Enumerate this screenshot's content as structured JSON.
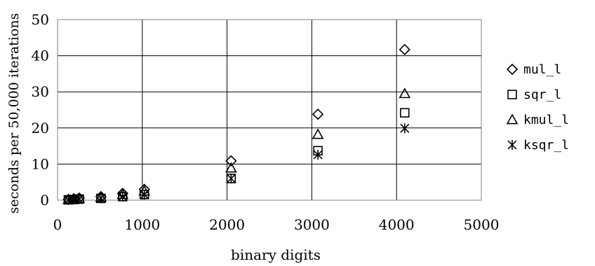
{
  "chart_data": {
    "type": "scatter",
    "title": "",
    "xlabel": "binary digits",
    "ylabel": "seconds per 50,000 iterations",
    "xlim": [
      0,
      5000
    ],
    "ylim": [
      0,
      50
    ],
    "xticks": [
      0,
      1000,
      2000,
      3000,
      4000,
      5000
    ],
    "yticks": [
      0,
      10,
      20,
      30,
      40,
      50
    ],
    "grid": true,
    "legend_position": "right",
    "series": [
      {
        "name": "mul_l",
        "marker": "diamond",
        "x": [
          128,
          192,
          256,
          512,
          768,
          1024,
          2048,
          3072,
          4096
        ],
        "y": [
          0.2,
          0.4,
          0.6,
          1.0,
          1.9,
          3.0,
          10.9,
          23.8,
          41.7
        ]
      },
      {
        "name": "sqr_l",
        "marker": "square",
        "x": [
          128,
          192,
          256,
          512,
          768,
          1024,
          2048,
          3072,
          4096
        ],
        "y": [
          0.1,
          0.2,
          0.3,
          0.5,
          1.0,
          1.6,
          6.0,
          13.7,
          24.2
        ]
      },
      {
        "name": "kmul_l",
        "marker": "triangle",
        "x": [
          128,
          192,
          256,
          512,
          768,
          1024,
          2048,
          3072,
          4096
        ],
        "y": [
          0.2,
          0.3,
          0.5,
          0.8,
          1.6,
          2.5,
          8.9,
          18.2,
          29.5
        ]
      },
      {
        "name": "ksqr_l",
        "marker": "asterisk",
        "x": [
          128,
          192,
          256,
          512,
          768,
          1024,
          2048,
          3072,
          4096
        ],
        "y": [
          0.1,
          0.2,
          0.3,
          0.5,
          1.0,
          1.5,
          6.0,
          12.6,
          19.9
        ]
      }
    ]
  }
}
